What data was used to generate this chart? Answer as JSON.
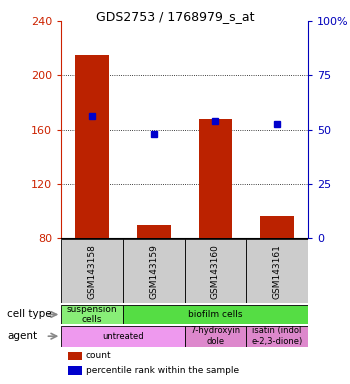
{
  "title": "GDS2753 / 1768979_s_at",
  "samples": [
    "GSM143158",
    "GSM143159",
    "GSM143160",
    "GSM143161"
  ],
  "bar_values": [
    215,
    90,
    168,
    96
  ],
  "bar_bottom": 80,
  "percentile_values": [
    170,
    157,
    166,
    164
  ],
  "bar_color": "#bb2200",
  "dot_color": "#0000cc",
  "ylim": [
    80,
    240
  ],
  "yticks_left": [
    80,
    120,
    160,
    200,
    240
  ],
  "yticks_right": [
    0,
    25,
    50,
    75,
    100
  ],
  "ytick_labels_right": [
    "0",
    "25",
    "50",
    "75",
    "100%"
  ],
  "grid_values": [
    120,
    160,
    200
  ],
  "cell_type_cells": [
    {
      "text": "suspension\ncells",
      "colspan": 1,
      "color": "#88ee77"
    },
    {
      "text": "biofilm cells",
      "colspan": 3,
      "color": "#55dd44"
    }
  ],
  "agent_cells": [
    {
      "text": "untreated",
      "colspan": 2,
      "color": "#ee99ee"
    },
    {
      "text": "7-hydroxyin\ndole",
      "colspan": 1,
      "color": "#dd88cc"
    },
    {
      "text": "isatin (indol\ne-2,3-dione)",
      "colspan": 1,
      "color": "#dd88cc"
    }
  ],
  "legend_items": [
    {
      "color": "#bb2200",
      "label": "count"
    },
    {
      "color": "#0000cc",
      "label": "percentile rank within the sample"
    }
  ],
  "left_axis_color": "#cc2200",
  "right_axis_color": "#0000bb",
  "bar_width": 0.55,
  "sample_box_color": "#cccccc",
  "bg_color": "#ffffff"
}
